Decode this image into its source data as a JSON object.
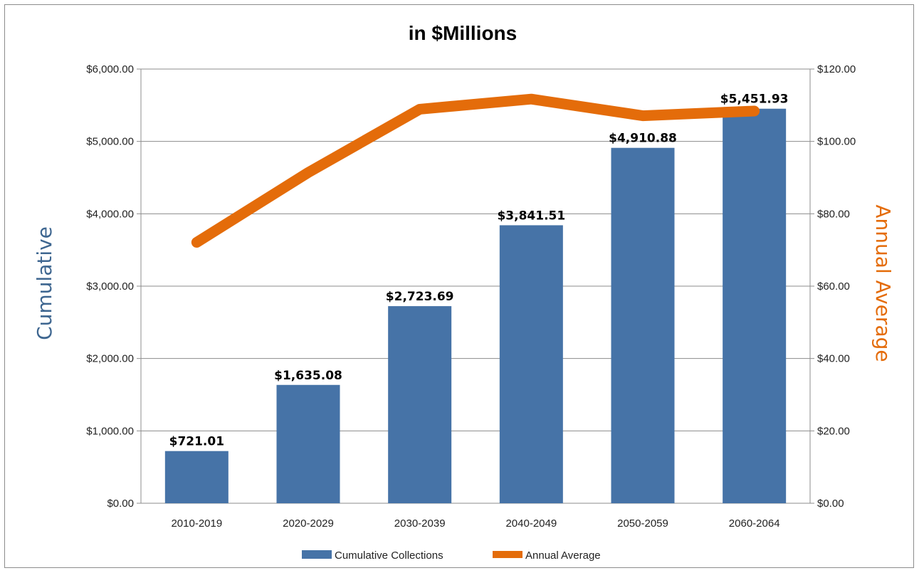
{
  "chart_data": {
    "type": "bar",
    "title": "in $Millions",
    "categories": [
      "2010-2019",
      "2020-2029",
      "2030-2039",
      "2040-2049",
      "2050-2059",
      "2060-2064"
    ],
    "series": [
      {
        "name": "Cumulative Collections",
        "type": "bar",
        "axis": "left",
        "values": [
          721.01,
          1635.08,
          2723.69,
          3841.51,
          4910.88,
          5451.93
        ],
        "labels": [
          "$721.01",
          "$1,635.08",
          "$2,723.69",
          "$3,841.51",
          "$4,910.88",
          "$5,451.93"
        ]
      },
      {
        "name": "Annual Average",
        "type": "line",
        "axis": "right",
        "values": [
          72.1,
          91.4,
          108.9,
          111.7,
          107.1,
          108.4
        ]
      }
    ],
    "ylabel": "Cumulative",
    "y2label": "Annual Average",
    "ylim": [
      0,
      6000
    ],
    "y2lim": [
      0,
      120
    ],
    "yticks": [
      "$0.00",
      "$1,000.00",
      "$2,000.00",
      "$3,000.00",
      "$4,000.00",
      "$5,000.00",
      "$6,000.00"
    ],
    "y2ticks": [
      "$0.00",
      "$20.00",
      "$40.00",
      "$60.00",
      "$80.00",
      "$100.00",
      "$120.00"
    ],
    "grid": true,
    "legend": "bottom",
    "colors": {
      "bar": "#4673a7",
      "line": "#e46c0a",
      "left_axis_title": "#3e6690",
      "right_axis_title": "#e46c0a"
    }
  }
}
